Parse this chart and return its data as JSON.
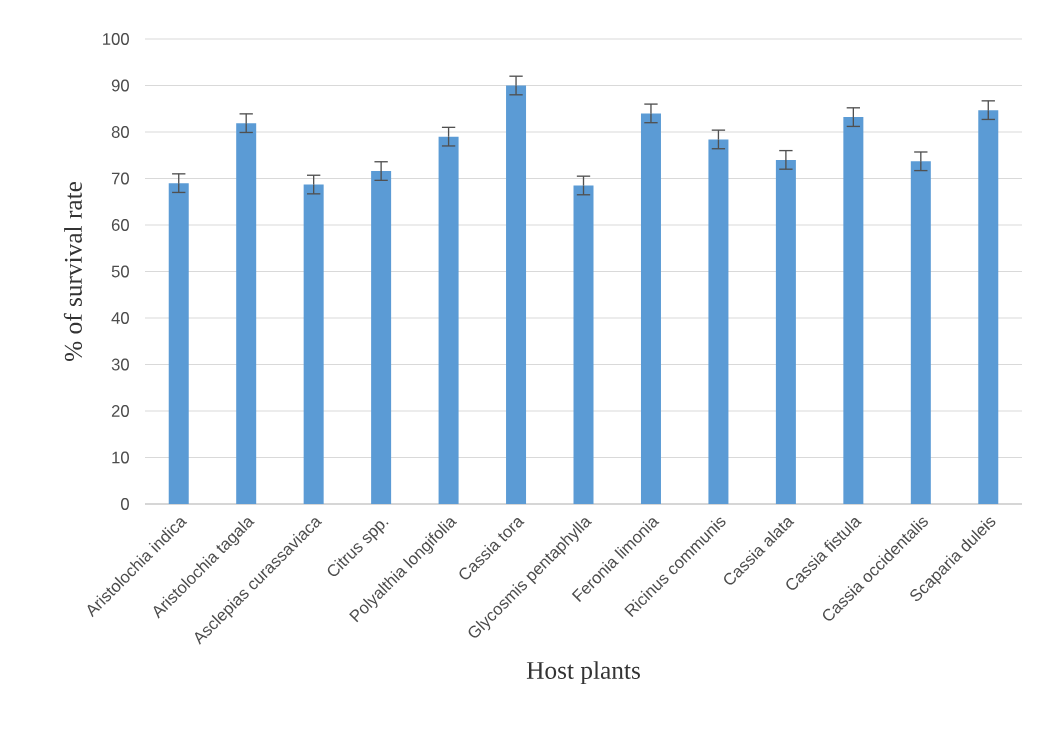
{
  "chart_data": {
    "type": "bar",
    "xlabel": "Host plants",
    "ylabel": "% of survival  rate",
    "categories": [
      "Aristolochia indica",
      "Aristolochia tagala",
      "Asclepias curassaviaca",
      "Citrus spp.",
      "Polyalthia longifolia",
      "Cassia tora",
      "Glycosmis pentaphylla",
      "Feronia limonia",
      "Ricinus communis",
      "Cassia alata",
      "Cassia fistula",
      "Cassia occidentalis",
      "Scaparia duleis"
    ],
    "values": [
      69.0,
      81.9,
      68.7,
      71.6,
      79.0,
      90.0,
      68.5,
      84.0,
      78.4,
      74.0,
      83.2,
      73.7,
      84.7
    ],
    "errors": [
      2,
      2,
      2,
      2,
      2,
      2,
      2,
      2,
      2,
      2,
      2,
      2,
      2
    ],
    "color": "#5b9bd5",
    "ylim": [
      0,
      100
    ],
    "yticks": [
      0,
      10,
      20,
      30,
      40,
      50,
      60,
      70,
      80,
      90,
      100
    ],
    "grid": "y"
  }
}
